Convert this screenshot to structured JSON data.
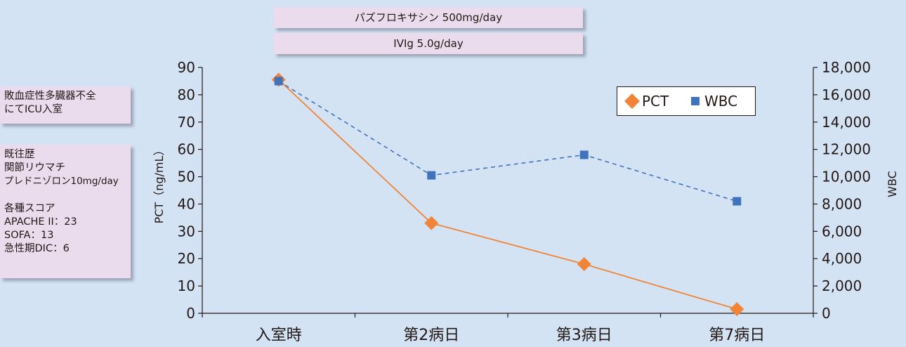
{
  "drugs": {
    "top": "パズフロキサシン 500mg/day",
    "bottom": "IVIg 5.0g/day"
  },
  "notes": {
    "admission": [
      "敗血症性多臓器不全",
      "にてICU入室"
    ],
    "history": [
      "既往歴",
      "関節リウマチ",
      "プレドニゾロン10mg/day"
    ],
    "scores": [
      "各種スコア",
      "APACHE II：23",
      "SOFA：13",
      "急性期DIC：6"
    ]
  },
  "colors": {
    "pct": "#f08537",
    "wbc": "#3f74bd",
    "axis": "#231815",
    "background": "#d3e3f3"
  },
  "chart_data": {
    "type": "line",
    "categories": [
      "入室時",
      "第2病日",
      "第3病日",
      "第7病日"
    ],
    "ylabel": "PCT（ng/mL）",
    "y2label": "WBC",
    "ylim": [
      0,
      90
    ],
    "yticks": [
      "0",
      "10",
      "20",
      "30",
      "40",
      "50",
      "60",
      "70",
      "80",
      "90"
    ],
    "y2lim": [
      0,
      18000
    ],
    "y2ticks": [
      "0",
      "2,000",
      "4,000",
      "6,000",
      "8,000",
      "10,000",
      "12,000",
      "14,000",
      "16,000",
      "18,000"
    ],
    "legend": "top-right",
    "grid": false,
    "series": [
      {
        "name": "PCT",
        "axis": "left",
        "marker": "diamond",
        "line": "solid",
        "values": [
          85.5,
          33,
          18,
          1.5
        ]
      },
      {
        "name": "WBC",
        "axis": "right",
        "marker": "square",
        "line": "dashed",
        "values": [
          17000,
          10100,
          11600,
          8200
        ]
      }
    ]
  }
}
